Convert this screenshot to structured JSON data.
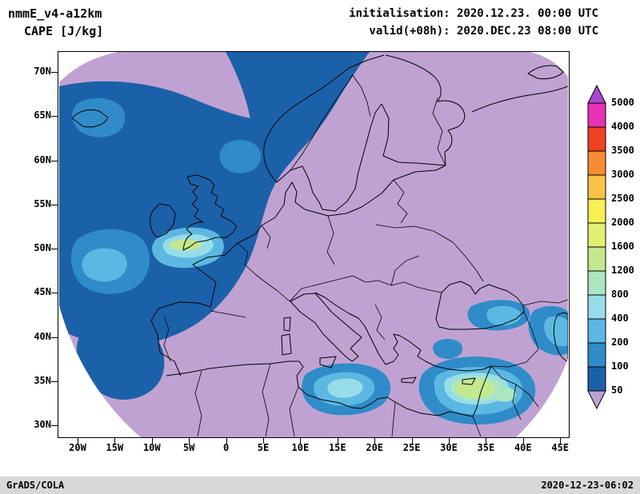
{
  "header": {
    "model": "nmmE_v4-a12km",
    "field": "CAPE [J/kg]",
    "init_label": "initialisation: 2020.12.23. 00:00 UTC",
    "valid_label": "valid(+08h): 2020.DEC.23 08:00 UTC"
  },
  "axes": {
    "lat_labels": [
      "70N",
      "65N",
      "60N",
      "55N",
      "50N",
      "45N",
      "40N",
      "35N",
      "30N"
    ],
    "lon_labels": [
      "20W",
      "15W",
      "10W",
      "5W",
      "0",
      "5E",
      "10E",
      "15E",
      "20E",
      "25E",
      "30E",
      "35E",
      "40E",
      "45E"
    ]
  },
  "colorbar": {
    "levels": [
      "5000",
      "4000",
      "3500",
      "3000",
      "2500",
      "2000",
      "1600",
      "1200",
      "800",
      "400",
      "200",
      "100",
      "50"
    ],
    "colors_bottom_to_top": [
      "#c0a2d2",
      "#1b61a9",
      "#2f8cc9",
      "#5cb8e2",
      "#97dde9",
      "#abe6c2",
      "#c3e88e",
      "#e2ef72",
      "#f7ef55",
      "#f9c34a",
      "#f78c33",
      "#ef4123",
      "#e732b5",
      "#a34ad2"
    ]
  },
  "footer": {
    "left": "GrADS/COLA",
    "right": "2020-12-23-06:02"
  }
}
